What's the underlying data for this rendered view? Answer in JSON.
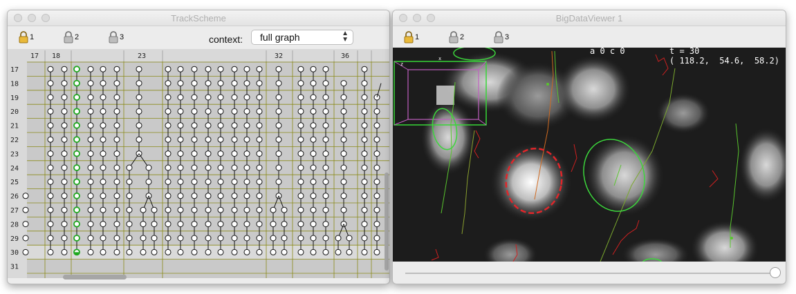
{
  "trackscheme": {
    "title": "TrackScheme",
    "locks": [
      "1",
      "2",
      "3"
    ],
    "context_label": "context:",
    "context_value": "full graph",
    "column_headers": [
      "17",
      "18",
      "23",
      "32",
      "36"
    ],
    "row_labels": [
      "17",
      "18",
      "19",
      "20",
      "21",
      "22",
      "23",
      "24",
      "25",
      "26",
      "27",
      "28",
      "29",
      "30",
      "31"
    ]
  },
  "bigdataviewer": {
    "title": "BigDataViewer 1",
    "locks": [
      "1",
      "2",
      "3"
    ],
    "source_info": "a 0 c 0",
    "timepoint": "t = 30",
    "coordinates": "( 118.2,  54.6,  58.2)",
    "axis_z": "z",
    "axis_x": "x"
  },
  "colors": {
    "grid_background": "#c9c9c9",
    "grid_line": "#8a8a1a",
    "selected_spot": "#1ea81e",
    "ellipse": "#3cd63c",
    "selected_ellipse": "#e0262a",
    "bounding_box": "#c060c0"
  }
}
